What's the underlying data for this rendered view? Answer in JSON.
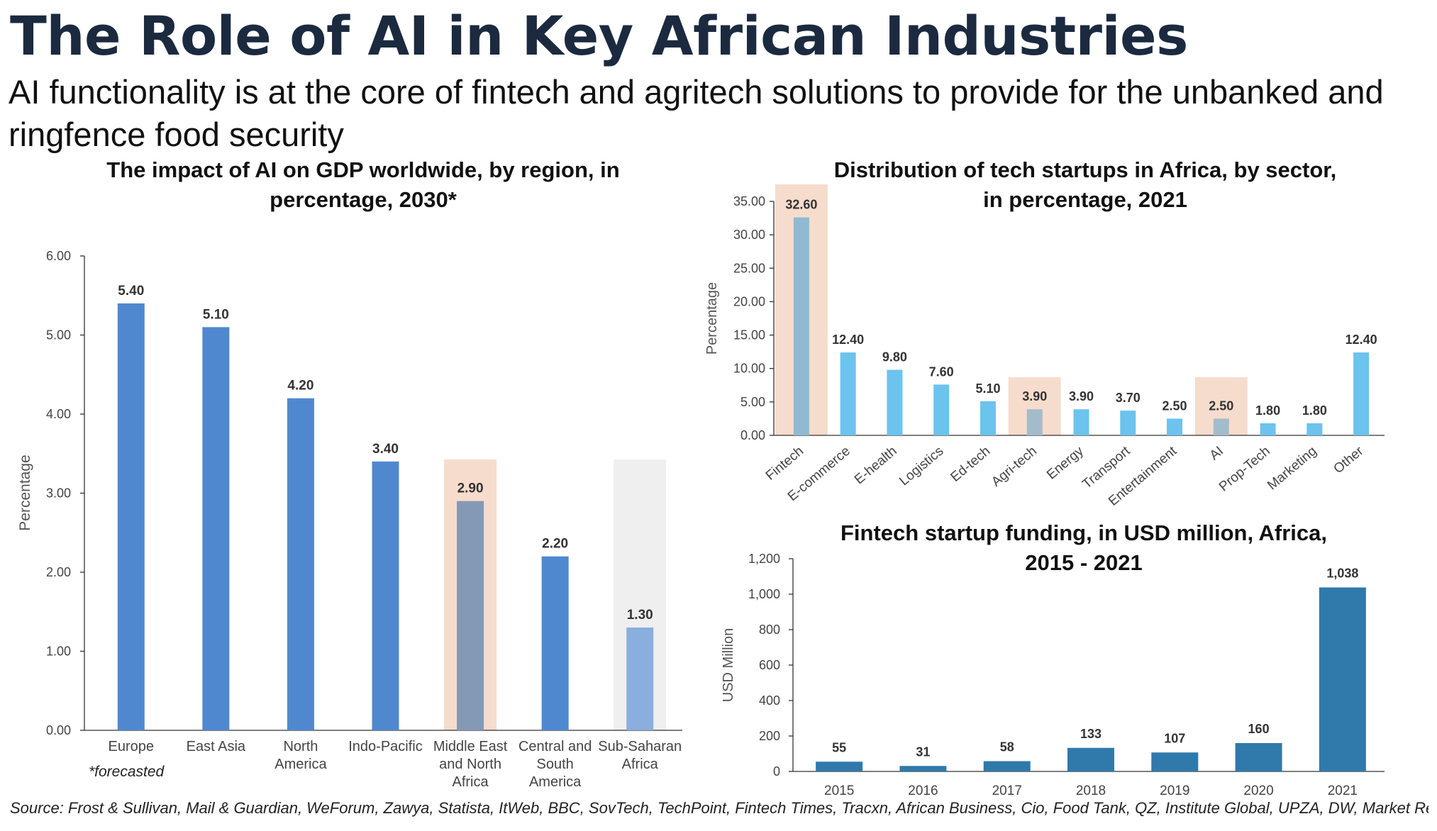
{
  "page": {
    "title": "The Role of AI in Key African Industries",
    "subtitle": "AI functionality  is at the core of fintech and agritech solutions to provide for the unbanked and ringfence food security",
    "source": "Source: Frost & Sullivan, Mail & Guardian, WeForum, Zawya, Statista, ItWeb, BBC, SovTech, TechPoint, Fintech Times, Tracxn, African Business, Cio, Food Tank, QZ, Institute Global, UPZA, DW, Market Research"
  },
  "chart_data": [
    {
      "type": "bar",
      "title": "The impact of AI on GDP worldwide, by region, in percentage, 2030*",
      "title_lines": [
        "The impact of AI on GDP worldwide, by region, in",
        "percentage, 2030*"
      ],
      "ylabel": "Percentage",
      "xlabel": "",
      "ylim": [
        0,
        6
      ],
      "ticks": [
        "0.00",
        "1.00",
        "2.00",
        "3.00",
        "4.00",
        "5.00",
        "6.00"
      ],
      "categories": [
        "Europe",
        "East Asia",
        "North America",
        "Indo-Pacific",
        "Middle East and North Africa",
        "Central and South America",
        "Sub-Saharan Africa"
      ],
      "category_lines": [
        [
          "Europe"
        ],
        [
          "East Asia"
        ],
        [
          "North",
          "America"
        ],
        [
          "Indo-Pacific"
        ],
        [
          "Middle East",
          "and North",
          "Africa"
        ],
        [
          "Central and",
          "South",
          "America"
        ],
        [
          "Sub-Saharan",
          "Africa"
        ]
      ],
      "values": [
        5.4,
        5.1,
        4.2,
        3.4,
        2.9,
        2.2,
        1.3
      ],
      "value_labels": [
        "5.40",
        "5.10",
        "4.20",
        "3.40",
        "2.90",
        "2.20",
        "1.30"
      ],
      "bar_colors": [
        "#5088cf",
        "#5088cf",
        "#5088cf",
        "#5088cf",
        "#8499b6",
        "#5088cf",
        "#8aaede"
      ],
      "highlights": [
        {
          "index": 4,
          "color": "#f6dccd"
        },
        {
          "index": 6,
          "color": "#efefef"
        }
      ],
      "footnote": "*forecasted",
      "grid": false
    },
    {
      "type": "bar",
      "title": "Distribution of tech startups in Africa, by sector, in percentage, 2021",
      "title_lines": [
        "Distribution  of tech startups in Africa, by sector,",
        "in percentage, 2021"
      ],
      "ylabel": "Percentage",
      "xlabel": "",
      "ylim": [
        0,
        35
      ],
      "ticks": [
        "0.00",
        "5.00",
        "10.00",
        "15.00",
        "20.00",
        "25.00",
        "30.00",
        "35.00"
      ],
      "categories": [
        "Fintech",
        "E-commerce",
        "E-health",
        "Logistics",
        "Ed-tech",
        "Agri-tech",
        "Energy",
        "Transport",
        "Entertainment",
        "AI",
        "Prop-Tech",
        "Marketing",
        "Other"
      ],
      "values": [
        32.6,
        12.4,
        9.8,
        7.6,
        5.1,
        3.9,
        3.9,
        3.7,
        2.5,
        2.5,
        1.8,
        1.8,
        12.4
      ],
      "value_labels": [
        "32.60",
        "12.40",
        "9.80",
        "7.60",
        "5.10",
        "3.90",
        "3.90",
        "3.70",
        "2.50",
        "2.50",
        "1.80",
        "1.80",
        "12.40"
      ],
      "bar_colors": [
        "#8fbad1",
        "#6cc3ed",
        "#6cc3ed",
        "#6cc3ed",
        "#6cc3ed",
        "#a3bccb",
        "#6cc3ed",
        "#6cc3ed",
        "#6cc3ed",
        "#a3bccb",
        "#6cc3ed",
        "#6cc3ed",
        "#6cc3ed"
      ],
      "highlights": [
        {
          "index": 0,
          "color": "#f6dccd"
        },
        {
          "index": 5,
          "color": "#f6dccd"
        },
        {
          "index": 9,
          "color": "#f6dccd"
        }
      ],
      "grid": false
    },
    {
      "type": "bar",
      "title": "Fintech startup funding, in USD million, Africa, 2015 - 2021",
      "title_lines": [
        "Fintech startup funding, in USD million, Africa,",
        "2015 - 2021"
      ],
      "ylabel": "USD Million",
      "xlabel": "",
      "ylim": [
        0,
        1200
      ],
      "ticks": [
        "0",
        "200",
        "400",
        "600",
        "800",
        "1,000",
        "1,200"
      ],
      "categories": [
        "2015",
        "2016",
        "2017",
        "2018",
        "2019",
        "2020",
        "2021"
      ],
      "values": [
        55,
        31,
        58,
        133,
        107,
        160,
        1038
      ],
      "value_labels": [
        "55",
        "31",
        "58",
        "133",
        "107",
        "160",
        "1,038"
      ],
      "bar_color": "#2f7aab",
      "grid": false
    }
  ]
}
